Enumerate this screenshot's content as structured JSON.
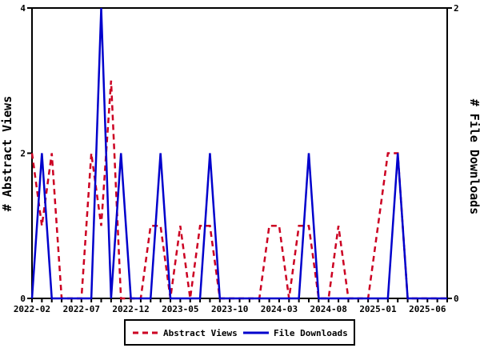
{
  "chart_data": {
    "type": "line",
    "title": "",
    "x": [
      "2022-02",
      "2022-03",
      "2022-04",
      "2022-05",
      "2022-06",
      "2022-07",
      "2022-08",
      "2022-09",
      "2022-10",
      "2022-11",
      "2022-12",
      "2023-01",
      "2023-02",
      "2023-03",
      "2023-04",
      "2023-05",
      "2023-06",
      "2023-07",
      "2023-08",
      "2023-09",
      "2023-10",
      "2023-11",
      "2023-12",
      "2024-01",
      "2024-02",
      "2024-03",
      "2024-04",
      "2024-05",
      "2024-06",
      "2024-07",
      "2024-08",
      "2024-09",
      "2024-10",
      "2024-11",
      "2024-12",
      "2025-01",
      "2025-02",
      "2025-03",
      "2025-04",
      "2025-05",
      "2025-06",
      "2025-07",
      "2025-08"
    ],
    "x_tick_labels": [
      "2022-02",
      "2022-07",
      "2022-12",
      "2023-05",
      "2023-10",
      "2024-03",
      "2024-08",
      "2025-01",
      "2025-06"
    ],
    "x_label_every": 5,
    "series": [
      {
        "name": "Abstract Views",
        "axis": "left",
        "color": "#cc0022",
        "style": "dashed",
        "values": [
          2,
          1,
          2,
          0,
          0,
          0,
          2,
          1,
          3,
          0,
          0,
          0,
          1,
          1,
          0,
          1,
          0,
          1,
          1,
          0,
          0,
          0,
          0,
          0,
          1,
          1,
          0,
          1,
          1,
          0,
          0,
          1,
          0,
          0,
          0,
          1,
          2,
          2,
          0,
          0,
          0,
          0,
          0
        ]
      },
      {
        "name": "File Downloads",
        "axis": "right",
        "color": "#0000cc",
        "style": "solid",
        "values": [
          0,
          1,
          0,
          0,
          0,
          0,
          0,
          2,
          0,
          1,
          0,
          0,
          0,
          1,
          0,
          0,
          0,
          0,
          1,
          0,
          0,
          0,
          0,
          0,
          0,
          0,
          0,
          0,
          1,
          0,
          0,
          0,
          0,
          0,
          0,
          0,
          0,
          1,
          0,
          0,
          0,
          0,
          0
        ]
      }
    ],
    "left_axis": {
      "label": "# Abstract Views",
      "min": 0,
      "max": 4,
      "ticks": [
        0,
        2,
        4
      ]
    },
    "right_axis": {
      "label": "# File Downloads",
      "min": 0,
      "max": 2,
      "ticks": [
        0,
        2
      ]
    },
    "legend": {
      "position": "bottom",
      "entries": [
        "Abstract Views",
        "File Downloads"
      ]
    },
    "grid": "off",
    "background_color": "#ffffff",
    "frame_color": "#000000"
  }
}
